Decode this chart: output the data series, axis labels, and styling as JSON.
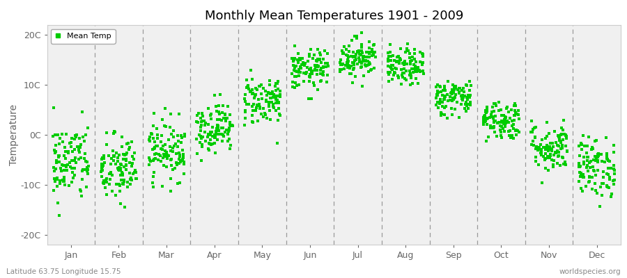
{
  "title": "Monthly Mean Temperatures 1901 - 2009",
  "ylabel": "Temperature",
  "xlabel_bottom": "Latitude 63.75 Longitude 15.75",
  "watermark": "worldspecies.org",
  "ylim": [
    -22,
    22
  ],
  "yticks": [
    -20,
    -10,
    0,
    10,
    20
  ],
  "ytick_labels": [
    "-20C",
    "-10C",
    "0C",
    "10C",
    "20C"
  ],
  "months": [
    "Jan",
    "Feb",
    "Mar",
    "Apr",
    "May",
    "Jun",
    "Jul",
    "Aug",
    "Sep",
    "Oct",
    "Nov",
    "Dec"
  ],
  "dot_color": "#00cc00",
  "dot_size": 5,
  "bg_color": "#ffffff",
  "plot_bg_color": "#f0f0f0",
  "legend_label": "Mean Temp",
  "n_years": 109,
  "mean_temps": [
    -5.5,
    -7.0,
    -3.0,
    1.5,
    7.0,
    13.0,
    15.5,
    13.5,
    7.5,
    3.0,
    -2.5,
    -6.5
  ],
  "std_temps": [
    4.0,
    3.5,
    3.0,
    2.5,
    2.5,
    2.0,
    2.0,
    1.8,
    1.8,
    2.0,
    2.5,
    3.0
  ],
  "dashed_line_color": "#999999",
  "spine_color": "#cccccc",
  "tick_color": "#666666",
  "title_fontsize": 13,
  "axis_label_fontsize": 9,
  "legend_fontsize": 8
}
